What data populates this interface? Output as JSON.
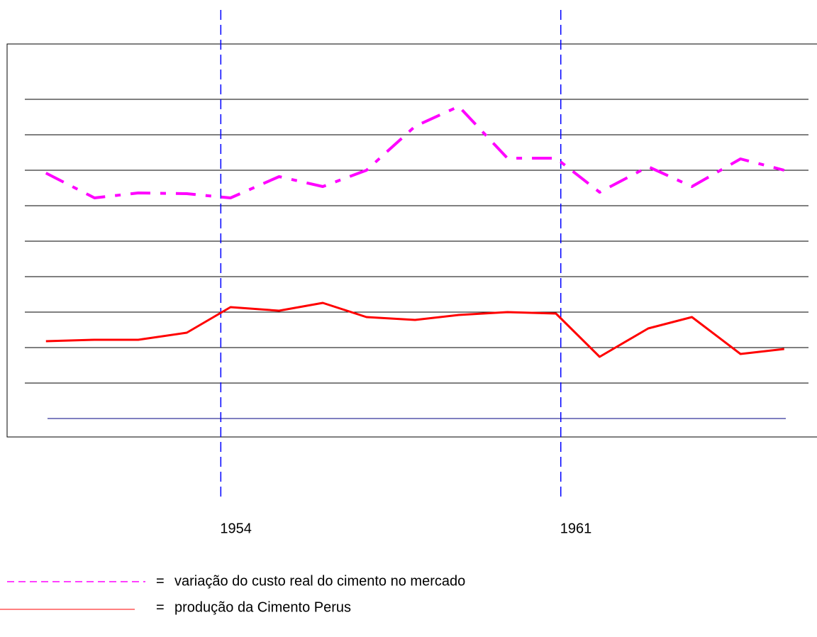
{
  "chart_data": {
    "type": "line",
    "x": [
      1950.4,
      1951.4,
      1952.3,
      1953.3,
      1954.2,
      1955.2,
      1956.1,
      1957.0,
      1958.0,
      1958.9,
      1959.9,
      1960.9,
      1961.8,
      1962.8,
      1963.7,
      1964.7,
      1965.6
    ],
    "series": [
      {
        "name": "variação do custo real do cimento no mercado",
        "color": "#ff00ff",
        "style": "dashdot",
        "values": [
          6.92,
          6.22,
          6.36,
          6.34,
          6.22,
          6.82,
          6.54,
          7.0,
          8.24,
          8.8,
          7.34,
          7.34,
          6.38,
          7.1,
          6.54,
          7.32,
          7.0
        ]
      },
      {
        "name": "produção da Cimento Perus",
        "color": "#ff0000",
        "style": "solid",
        "values": [
          2.18,
          2.22,
          2.22,
          2.42,
          3.14,
          3.04,
          3.26,
          2.86,
          2.78,
          2.92,
          3.0,
          2.96,
          1.74,
          2.54,
          2.86,
          1.82,
          1.96
        ]
      }
    ],
    "xlim": [
      1949.6,
      1966.1
    ],
    "ylim": [
      -0.52,
      10.56
    ],
    "xticks": [
      1954,
      1961
    ],
    "yticks": [
      1,
      2,
      3,
      4,
      5,
      6,
      7,
      8,
      9
    ],
    "baseline": 0,
    "grid": true,
    "legend_separator": "="
  }
}
